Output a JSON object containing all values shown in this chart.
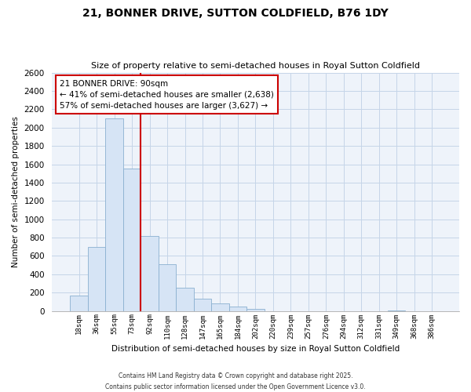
{
  "title": "21, BONNER DRIVE, SUTTON COLDFIELD, B76 1DY",
  "subtitle": "Size of property relative to semi-detached houses in Royal Sutton Coldfield",
  "xlabel": "Distribution of semi-detached houses by size in Royal Sutton Coldfield",
  "ylabel": "Number of semi-detached properties",
  "bar_labels": [
    "18sqm",
    "36sqm",
    "55sqm",
    "73sqm",
    "92sqm",
    "110sqm",
    "128sqm",
    "147sqm",
    "165sqm",
    "184sqm",
    "202sqm",
    "220sqm",
    "239sqm",
    "257sqm",
    "276sqm",
    "294sqm",
    "312sqm",
    "331sqm",
    "349sqm",
    "368sqm",
    "386sqm"
  ],
  "bar_values": [
    170,
    700,
    2100,
    1550,
    820,
    510,
    255,
    130,
    80,
    50,
    20,
    0,
    0,
    0,
    0,
    0,
    0,
    0,
    5,
    0,
    0
  ],
  "bar_color": "#d6e4f5",
  "bar_edge_color": "#8ab0d0",
  "property_line_color": "#cc0000",
  "annotation_title": "21 BONNER DRIVE: 90sqm",
  "annotation_line1": "← 41% of semi-detached houses are smaller (2,638)",
  "annotation_line2": "57% of semi-detached houses are larger (3,627) →",
  "annotation_box_color": "#ffffff",
  "annotation_box_edge_color": "#cc0000",
  "ylim": [
    0,
    2600
  ],
  "yticks": [
    0,
    200,
    400,
    600,
    800,
    1000,
    1200,
    1400,
    1600,
    1800,
    2000,
    2200,
    2400,
    2600
  ],
  "footer1": "Contains HM Land Registry data © Crown copyright and database right 2025.",
  "footer2": "Contains public sector information licensed under the Open Government Licence v3.0.",
  "bg_color": "#ffffff",
  "plot_bg_color": "#eef3fa",
  "grid_color": "#c5d5e8"
}
